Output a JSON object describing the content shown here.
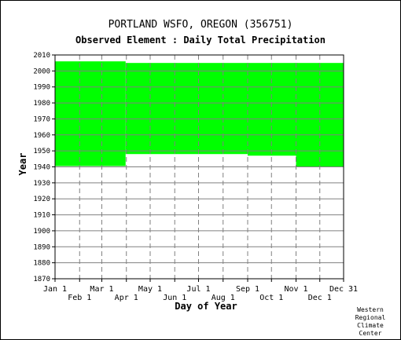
{
  "chart_data": {
    "type": "area",
    "title": "PORTLAND WSFO, OREGON   (356751)",
    "subtitle": "Observed Element : Daily Total Precipitation",
    "xlabel": "Day of Year",
    "ylabel": "Year",
    "ylim": [
      1870,
      2010
    ],
    "yticks": [
      1870,
      1880,
      1890,
      1900,
      1910,
      1920,
      1930,
      1940,
      1950,
      1960,
      1970,
      1980,
      1990,
      2000,
      2010
    ],
    "xlim": [
      1,
      365
    ],
    "xticks": [
      {
        "day": 1,
        "label": "Jan 1",
        "row": 1
      },
      {
        "day": 32,
        "label": "Feb 1",
        "row": 2
      },
      {
        "day": 60,
        "label": "Mar 1",
        "row": 1
      },
      {
        "day": 91,
        "label": "Apr 1",
        "row": 2
      },
      {
        "day": 121,
        "label": "May 1",
        "row": 1
      },
      {
        "day": 152,
        "label": "Jun 1",
        "row": 2
      },
      {
        "day": 182,
        "label": "Jul 1",
        "row": 1
      },
      {
        "day": 213,
        "label": "Aug 1",
        "row": 2
      },
      {
        "day": 244,
        "label": "Sep 1",
        "row": 1
      },
      {
        "day": 274,
        "label": "Oct 1",
        "row": 2
      },
      {
        "day": 305,
        "label": "Nov 1",
        "row": 1
      },
      {
        "day": 335,
        "label": "Dec 1",
        "row": 2
      },
      {
        "day": 365,
        "label": "Dec 31",
        "row": 1
      }
    ],
    "series": [
      {
        "color": "#00ff00",
        "segments": [
          {
            "start_day": 1,
            "end_day": 60,
            "start_year": 1940.5,
            "end_year": 2006
          },
          {
            "start_day": 60,
            "end_day": 90,
            "start_year": 1940.5,
            "end_year": 2006
          },
          {
            "start_day": 90,
            "end_day": 244,
            "start_year": 1948,
            "end_year": 2005
          },
          {
            "start_day": 244,
            "end_day": 305,
            "start_year": 1947,
            "end_year": 2005
          },
          {
            "start_day": 305,
            "end_day": 365,
            "start_year": 1940,
            "end_year": 2005
          }
        ]
      }
    ],
    "grid": true
  },
  "credit": [
    "Western",
    "Regional",
    "Climate",
    "Center"
  ]
}
